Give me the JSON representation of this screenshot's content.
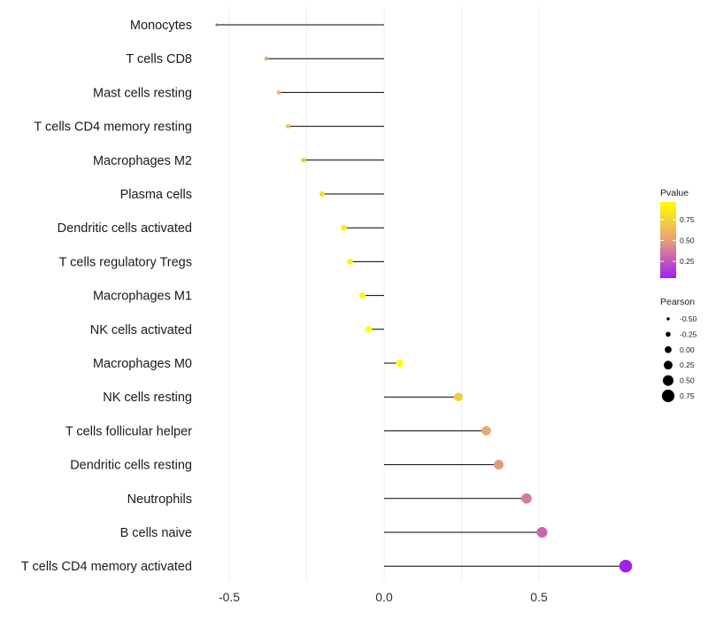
{
  "chart_data": {
    "type": "lollipop",
    "title": "",
    "xlabel": "",
    "ylabel": "",
    "xlim": [
      -0.5,
      0.78
    ],
    "xticks": [
      -0.5,
      0.0,
      0.5
    ],
    "xtick_labels": [
      "-0.5",
      "0.0",
      "0.5"
    ],
    "grid": "vertical",
    "categories": [
      "Monocytes",
      "T cells CD8",
      "Mast cells resting",
      "T cells CD4 memory resting",
      "Macrophages M2",
      "Plasma cells",
      "Dendritic cells activated",
      "T cells regulatory  Tregs ",
      "Macrophages M1",
      "NK cells activated",
      "Macrophages M0",
      "NK cells resting",
      "T cells follicular helper",
      "Dendritic cells resting",
      "Neutrophils",
      "B cells naive",
      "T cells CD4 memory activated"
    ],
    "pearson": [
      -0.54,
      -0.38,
      -0.34,
      -0.31,
      -0.26,
      -0.2,
      -0.13,
      -0.11,
      -0.07,
      -0.05,
      0.05,
      0.24,
      0.33,
      0.37,
      0.46,
      0.51,
      0.78
    ],
    "pvalue": [
      0.2,
      0.55,
      0.62,
      0.66,
      0.72,
      0.8,
      0.88,
      0.9,
      0.94,
      0.96,
      0.96,
      0.72,
      0.55,
      0.48,
      0.38,
      0.3,
      0.05
    ],
    "color_legend": {
      "title": "Pvalue",
      "ticks": [
        0.25,
        0.5,
        0.75
      ],
      "tick_labels": [
        "0.25",
        "0.50",
        "0.75"
      ],
      "range": [
        0.05,
        0.96
      ],
      "low_color": "#a020f0",
      "mid_color": "#e6a07a",
      "high_color": "#ffff00"
    },
    "size_legend": {
      "title": "Pearson",
      "values": [
        -0.5,
        -0.25,
        0.0,
        0.25,
        0.5,
        0.75
      ],
      "labels": [
        "-0.50",
        "-0.25",
        "0.00",
        "0.25",
        "0.50",
        "0.75"
      ]
    }
  }
}
